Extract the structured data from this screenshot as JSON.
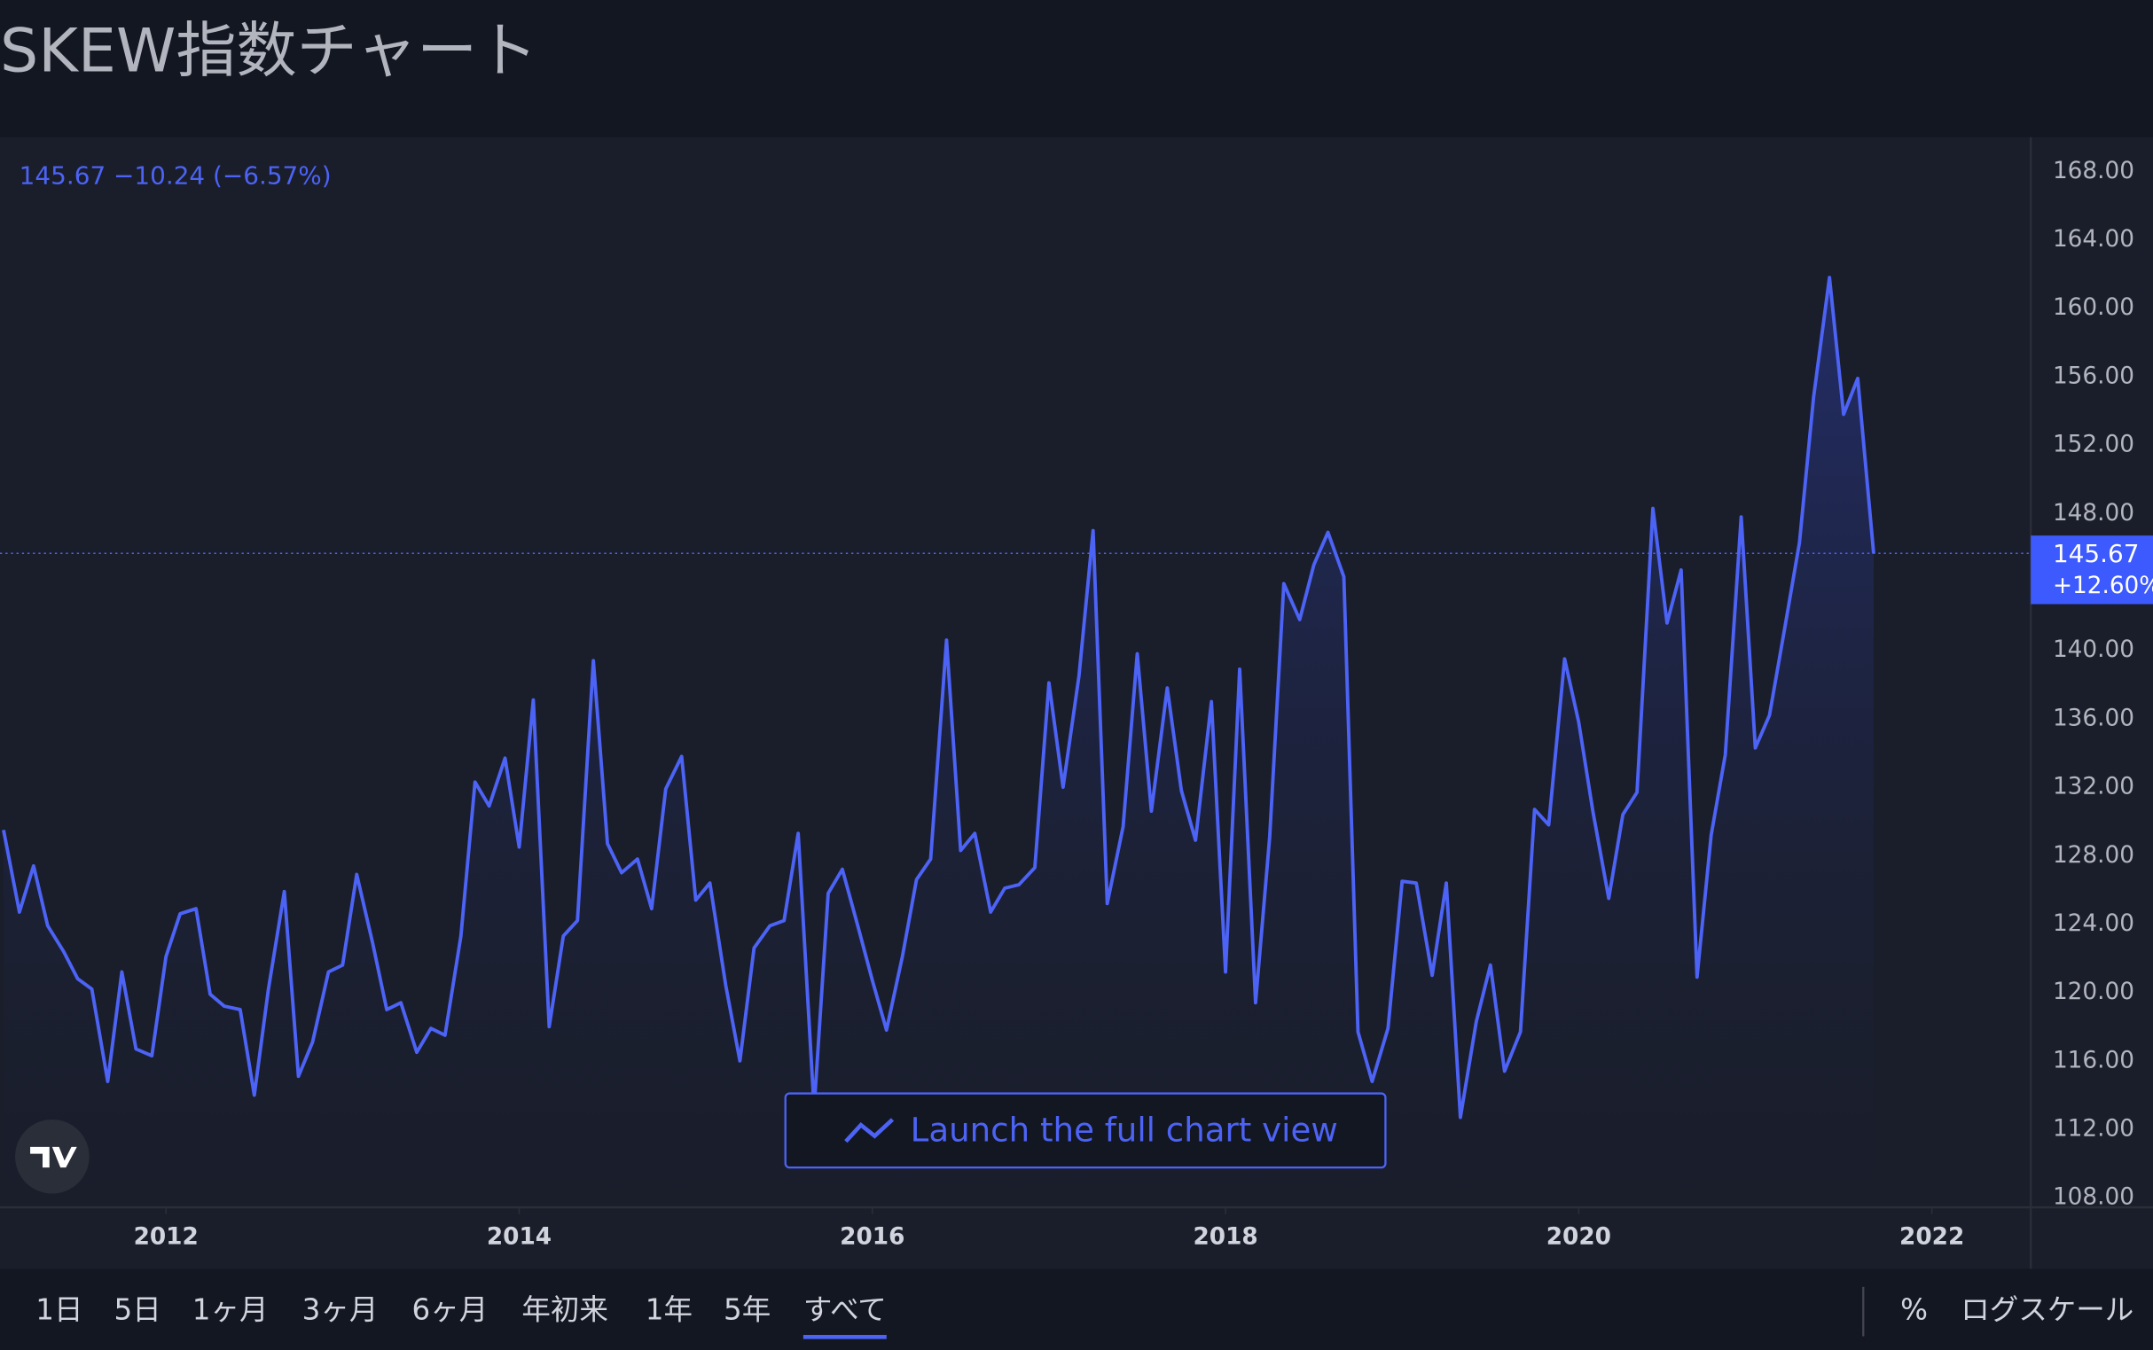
{
  "chart_data": {
    "type": "line",
    "title": "SKEW指数チャート",
    "header": "145.67 −10.24 (−6.57%)",
    "color": "#4c63f5",
    "grid": false,
    "x": [
      2011.08,
      2011.17,
      2011.25,
      2011.33,
      2011.42,
      2011.5,
      2011.58,
      2011.67,
      2011.75,
      2011.83,
      2011.92,
      2012,
      2012.08,
      2012.17,
      2012.25,
      2012.33,
      2012.42,
      2012.5,
      2012.58,
      2012.67,
      2012.75,
      2012.83,
      2012.92,
      2013,
      2013.08,
      2013.17,
      2013.25,
      2013.33,
      2013.42,
      2013.5,
      2013.58,
      2013.67,
      2013.75,
      2013.83,
      2013.92,
      2014,
      2014.08,
      2014.17,
      2014.25,
      2014.33,
      2014.42,
      2014.5,
      2014.58,
      2014.67,
      2014.75,
      2014.83,
      2014.92,
      2015,
      2015.08,
      2015.17,
      2015.25,
      2015.33,
      2015.42,
      2015.5,
      2015.58,
      2015.67,
      2015.75,
      2015.83,
      2015.92,
      2016,
      2016.08,
      2016.17,
      2016.25,
      2016.33,
      2016.42,
      2016.5,
      2016.58,
      2016.67,
      2016.75,
      2016.83,
      2016.92,
      2017,
      2017.08,
      2017.17,
      2017.25,
      2017.33,
      2017.42,
      2017.5,
      2017.58,
      2017.67,
      2017.75,
      2017.83,
      2017.92,
      2018,
      2018.08,
      2018.17,
      2018.25,
      2018.33,
      2018.42,
      2018.5,
      2018.58,
      2018.67,
      2018.75,
      2018.83,
      2018.92,
      2019,
      2019.08,
      2019.17,
      2019.25,
      2019.33,
      2019.42,
      2019.5,
      2019.58,
      2019.67,
      2019.75,
      2019.83,
      2019.92,
      2020,
      2020.08,
      2020.17,
      2020.25,
      2020.33,
      2020.42,
      2020.5,
      2020.58,
      2020.67,
      2020.75,
      2020.83,
      2020.92,
      2021,
      2021.08,
      2021.17,
      2021.25,
      2021.33,
      2021.42,
      2021.5,
      2021.58,
      2021.67
    ],
    "values": [
      129.5,
      124.7,
      127.4,
      123.9,
      122.4,
      120.8,
      120.2,
      114.8,
      121.2,
      116.7,
      116.3,
      122.1,
      124.6,
      124.9,
      119.9,
      119.2,
      119.0,
      114.0,
      120.2,
      125.9,
      115.1,
      117.1,
      121.2,
      121.6,
      126.9,
      122.9,
      119.0,
      119.4,
      116.5,
      117.9,
      117.5,
      123.3,
      132.3,
      130.9,
      133.7,
      128.5,
      137.1,
      118.0,
      123.3,
      124.2,
      139.4,
      128.7,
      127.0,
      127.8,
      124.9,
      131.9,
      133.8,
      125.4,
      126.4,
      120.4,
      116.0,
      122.6,
      123.9,
      124.2,
      129.3,
      113.2,
      125.8,
      127.2,
      123.8,
      120.7,
      117.8,
      122.1,
      126.6,
      127.8,
      140.6,
      128.3,
      129.3,
      124.7,
      126.1,
      126.3,
      127.3,
      138.1,
      132.0,
      138.5,
      147.0,
      125.2,
      129.7,
      139.8,
      130.6,
      137.8,
      131.8,
      128.9,
      137.0,
      121.2,
      138.9,
      119.4,
      129.1,
      143.9,
      141.8,
      145.0,
      146.9,
      144.3,
      117.7,
      114.8,
      117.9,
      126.5,
      126.4,
      121.0,
      126.4,
      112.7,
      118.3,
      121.6,
      115.4,
      117.7,
      130.7,
      129.8,
      139.5,
      135.8,
      130.6,
      125.5,
      130.4,
      131.7,
      148.3,
      141.6,
      144.7,
      120.9,
      129.2,
      133.9,
      147.8,
      134.3,
      136.2,
      141.5,
      146.3,
      154.8,
      161.8,
      153.8,
      155.9,
      145.67
    ],
    "xlim": [
      2011.06,
      2022.56
    ],
    "xticks": [
      2012,
      2014,
      2016,
      2018,
      2020,
      2022
    ],
    "ylim": [
      107.44,
      170.0
    ],
    "yticks": [
      {
        "value": 108,
        "label": "108.00"
      },
      {
        "value": 112,
        "label": "112.00"
      },
      {
        "value": 116,
        "label": "116.00"
      },
      {
        "value": 120,
        "label": "120.00"
      },
      {
        "value": 124,
        "label": "124.00"
      },
      {
        "value": 128,
        "label": "128.00"
      },
      {
        "value": 132,
        "label": "132.00"
      },
      {
        "value": 136,
        "label": "136.00"
      },
      {
        "value": 140,
        "label": "140.00"
      },
      {
        "value": 144,
        "label": "144.00"
      },
      {
        "value": 148,
        "label": "148.00"
      },
      {
        "value": 152,
        "label": "152.00"
      },
      {
        "value": 156,
        "label": "156.00"
      },
      {
        "value": 160,
        "label": "160.00"
      },
      {
        "value": 164,
        "label": "164.00"
      },
      {
        "value": 168,
        "label": "168.00"
      }
    ],
    "last_price": {
      "value": 145.67,
      "label": "145.67"
    },
    "last_change": "+12.60%",
    "button": "Launch the full chart view",
    "ranges": [
      "1日",
      "5日",
      "1ヶ月",
      "3ヶ月",
      "6ヶ月",
      "年初来",
      "1年",
      "5年",
      "すべて"
    ],
    "scale_options": [
      "%",
      "ログスケール"
    ]
  }
}
